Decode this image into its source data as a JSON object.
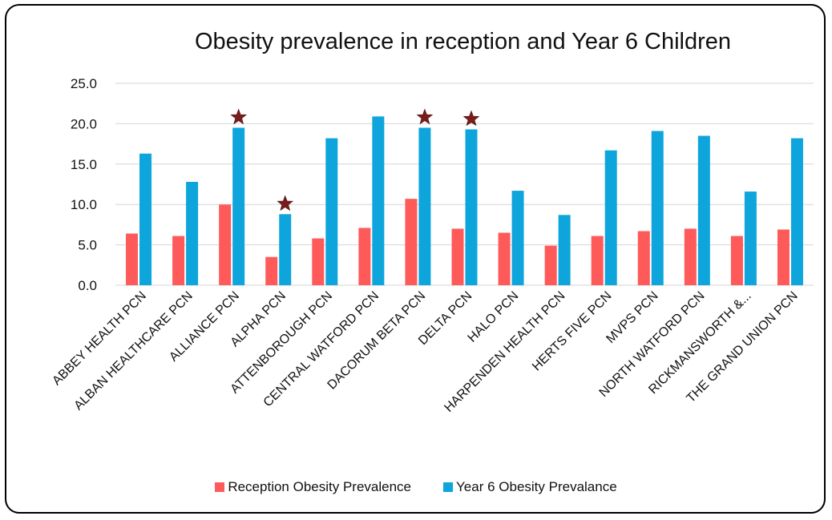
{
  "chart_data": {
    "type": "bar",
    "title": "Obesity prevalence in reception and Year 6 Children",
    "xlabel": "",
    "ylabel": "",
    "ylim": [
      0,
      25
    ],
    "yticks": [
      "0.0",
      "5.0",
      "10.0",
      "15.0",
      "20.0",
      "25.0"
    ],
    "categories": [
      "ABBEY HEALTH PCN",
      "ALBAN HEALTHCARE PCN",
      "ALLIANCE PCN",
      "ALPHA PCN",
      "ATTENBOROUGH PCN",
      "CENTRAL WATFORD PCN",
      "DACORUM BETA PCN",
      "DELTA PCN",
      "HALO PCN",
      "HARPENDEN HEALTH PCN",
      "HERTS FIVE PCN",
      "MVPS PCN",
      "NORTH WATFORD PCN",
      "RICKMANSWORTH &...",
      "THE GRAND UNION PCN"
    ],
    "series": [
      {
        "name": "Reception Obesity Prevalence",
        "color": "#ff5a5a",
        "values": [
          6.4,
          6.1,
          10.0,
          3.5,
          5.8,
          7.1,
          10.7,
          7.0,
          6.5,
          4.9,
          6.1,
          6.7,
          7.0,
          6.1,
          6.9
        ]
      },
      {
        "name": "Year 6 Obesity Prevalance",
        "color": "#0ea5dc",
        "values": [
          16.3,
          12.8,
          19.5,
          8.8,
          18.2,
          20.9,
          19.5,
          19.3,
          11.7,
          8.7,
          16.7,
          19.1,
          18.5,
          11.6,
          18.2
        ]
      }
    ],
    "markers": {
      "type": "star",
      "color": "#7a1c1c",
      "categories": [
        "ALLIANCE PCN",
        "ALPHA PCN",
        "DACORUM BETA PCN",
        "DELTA PCN"
      ]
    },
    "grid": true,
    "legend_position": "bottom"
  }
}
